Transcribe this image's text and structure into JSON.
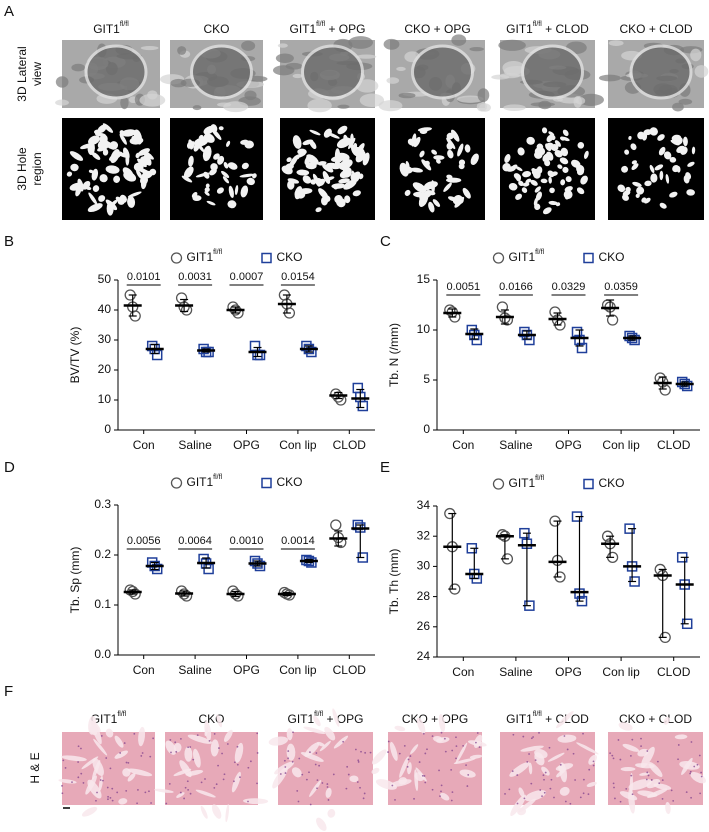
{
  "panel_a": {
    "label": "A",
    "columns": [
      {
        "text": "GIT1",
        "sup": "fl/fl"
      },
      {
        "text": "CKO"
      },
      {
        "text": "GIT1",
        "sup": "fl/fl",
        "after": " + OPG"
      },
      {
        "text": "CKO + OPG"
      },
      {
        "text": "GIT1",
        "sup": "fl/fl",
        "after": " + CLOD"
      },
      {
        "text": "CKO + CLOD"
      }
    ],
    "rows": [
      [
        "3D Lateral",
        "view"
      ],
      [
        "3D Hole",
        "region"
      ]
    ]
  },
  "chart_data": [
    {
      "type": "dotplot",
      "panel": "B",
      "y_label": "BV/TV (%)",
      "categories": [
        "Con",
        "Saline",
        "OPG",
        "Con lip",
        "CLOD"
      ],
      "series": [
        {
          "name": "GIT1",
          "name_sup": "fl/fl",
          "marker": "circle",
          "color": "#555555",
          "values": [
            [
              45,
              41,
              38
            ],
            [
              44,
              41,
              40
            ],
            [
              41,
              40,
              39
            ],
            [
              45,
              42,
              39
            ],
            [
              12,
              11,
              10
            ]
          ],
          "means": [
            41.5,
            41.5,
            40,
            42,
            11.5
          ],
          "error_bars": [
            [
              38,
              45
            ],
            [
              39.5,
              43.5
            ],
            [
              39,
              41
            ],
            [
              39,
              45
            ],
            [
              10.5,
              12.5
            ]
          ]
        },
        {
          "name": "CKO",
          "marker": "square",
          "color": "#1f3f9a",
          "values": [
            [
              28,
              27,
              25
            ],
            [
              27,
              26,
              26
            ],
            [
              28,
              25,
              25
            ],
            [
              28,
              27,
              26
            ],
            [
              14,
              11,
              8
            ]
          ],
          "means": [
            27,
            26.5,
            26,
            27,
            10.5
          ],
          "error_bars": [
            [
              25.5,
              28.5
            ],
            [
              26,
              27
            ],
            [
              24.5,
              27.5
            ],
            [
              26,
              28
            ],
            [
              7.5,
              13.5
            ]
          ]
        }
      ],
      "p_values": [
        "0.0101",
        "0.0031",
        "0.0007",
        "0.0154"
      ],
      "ylim": [
        0,
        50
      ],
      "yticks": [
        0,
        10,
        20,
        30,
        40,
        50
      ]
    },
    {
      "type": "dotplot",
      "panel": "C",
      "y_label": "Tb. N (/mm)",
      "categories": [
        "Con",
        "Saline",
        "OPG",
        "Con lip",
        "CLOD"
      ],
      "series": [
        {
          "name": "GIT1",
          "name_sup": "fl/fl",
          "marker": "circle",
          "color": "#555555",
          "values": [
            [
              12,
              11.8,
              11.3
            ],
            [
              12.3,
              11.2,
              11
            ],
            [
              11.8,
              11,
              10.5
            ],
            [
              12.5,
              12.3,
              11
            ],
            [
              5.2,
              4.8,
              4
            ]
          ],
          "means": [
            11.7,
            11.3,
            11.1,
            12.2,
            4.7
          ],
          "error_bars": [
            [
              11.3,
              12.1
            ],
            [
              10.6,
              12
            ],
            [
              10.5,
              11.7
            ],
            [
              11.4,
              13
            ],
            [
              4.1,
              5.3
            ]
          ]
        },
        {
          "name": "CKO",
          "marker": "square",
          "color": "#1f3f9a",
          "values": [
            [
              10,
              9.5,
              9
            ],
            [
              9.8,
              9.5,
              9
            ],
            [
              9.8,
              9,
              8.2
            ],
            [
              9.4,
              9.2,
              9
            ],
            [
              4.8,
              4.6,
              4.4
            ]
          ],
          "means": [
            9.6,
            9.5,
            9.2,
            9.2,
            4.6
          ],
          "error_bars": [
            [
              9.1,
              10.1
            ],
            [
              9.1,
              9.9
            ],
            [
              8.4,
              10
            ],
            [
              9,
              9.4
            ],
            [
              4.4,
              4.8
            ]
          ]
        }
      ],
      "p_values": [
        "0.0051",
        "0.0166",
        "0.0329",
        "0.0359"
      ],
      "ylim": [
        0,
        15
      ],
      "yticks": [
        0,
        5,
        10,
        15
      ]
    },
    {
      "type": "dotplot",
      "panel": "D",
      "y_label": "Tb. Sp (mm)",
      "categories": [
        "Con",
        "Saline",
        "OPG",
        "Con lip",
        "CLOD"
      ],
      "series": [
        {
          "name": "GIT1",
          "name_sup": "fl/fl",
          "marker": "circle",
          "color": "#555555",
          "values": [
            [
              0.13,
              0.127,
              0.122
            ],
            [
              0.128,
              0.122,
              0.118
            ],
            [
              0.128,
              0.122,
              0.118
            ],
            [
              0.125,
              0.122,
              0.12
            ],
            [
              0.26,
              0.235,
              0.225
            ]
          ],
          "means": [
            0.126,
            0.123,
            0.122,
            0.122,
            0.233
          ],
          "error_bars": [
            [
              0.122,
              0.13
            ],
            [
              0.118,
              0.128
            ],
            [
              0.117,
              0.127
            ],
            [
              0.119,
              0.125
            ],
            [
              0.218,
              0.248
            ]
          ]
        },
        {
          "name": "CKO",
          "marker": "square",
          "color": "#1f3f9a",
          "values": [
            [
              0.185,
              0.178,
              0.172
            ],
            [
              0.192,
              0.183,
              0.172
            ],
            [
              0.188,
              0.183,
              0.178
            ],
            [
              0.19,
              0.188,
              0.185
            ],
            [
              0.26,
              0.255,
              0.195
            ]
          ],
          "means": [
            0.178,
            0.184,
            0.183,
            0.188,
            0.253
          ],
          "error_bars": [
            [
              0.171,
              0.185
            ],
            [
              0.174,
              0.194
            ],
            [
              0.178,
              0.188
            ],
            [
              0.185,
              0.191
            ],
            [
              0.195,
              0.26
            ]
          ]
        }
      ],
      "p_values": [
        "0.0056",
        "0.0064",
        "0.0010",
        "0.0014"
      ],
      "ylim": [
        0,
        0.3
      ],
      "yticks": [
        {
          "value": 0,
          "label": "0.0"
        },
        0.1,
        0.2,
        0.3
      ]
    },
    {
      "type": "dotplot",
      "panel": "E",
      "y_label": "Tb. Th (mm)",
      "categories": [
        "Con",
        "Saline",
        "OPG",
        "Con lip",
        "CLOD"
      ],
      "series": [
        {
          "name": "GIT1",
          "name_sup": "fl/fl",
          "marker": "circle",
          "color": "#555555",
          "values": [
            [
              33.5,
              31.3,
              28.5
            ],
            [
              32.1,
              32,
              30.5
            ],
            [
              33,
              30.4,
              29.3
            ],
            [
              32,
              31.5,
              30.6
            ],
            [
              29.8,
              29.4,
              25.3
            ]
          ],
          "means": [
            31.3,
            32,
            30.3,
            31.5,
            29.4
          ],
          "error_bars": [
            [
              28.5,
              33.5
            ],
            [
              30.5,
              32.1
            ],
            [
              29.3,
              33
            ],
            [
              30.6,
              32
            ],
            [
              25.3,
              29.8
            ]
          ]
        },
        {
          "name": "CKO",
          "marker": "square",
          "color": "#1f3f9a",
          "values": [
            [
              31.2,
              29.5,
              29.2
            ],
            [
              32.2,
              31.5,
              27.4
            ],
            [
              33.3,
              28.2,
              27.7
            ],
            [
              32.5,
              30,
              29
            ],
            [
              30.6,
              28.8,
              26.2
            ]
          ],
          "means": [
            29.5,
            31.4,
            28.3,
            30,
            28.8
          ],
          "error_bars": [
            [
              29.2,
              31.2
            ],
            [
              27.4,
              32.2
            ],
            [
              27.7,
              33.3
            ],
            [
              29,
              32.5
            ],
            [
              26.2,
              30.6
            ]
          ]
        }
      ],
      "ylim": [
        24,
        34
      ],
      "yticks": [
        24,
        26,
        28,
        30,
        32,
        34
      ]
    }
  ],
  "panel_f": {
    "label": "F",
    "columns": [
      {
        "text": "GIT1",
        "sup": "fl/fl"
      },
      {
        "text": "CKO"
      },
      {
        "text": "GIT1",
        "sup": "fl/fl",
        "after": " + OPG"
      },
      {
        "text": "CKO + OPG"
      },
      {
        "text": "GIT1",
        "sup": "fl/fl",
        "after": " + CLOD"
      },
      {
        "text": "CKO + CLOD"
      }
    ],
    "row": "H & E"
  }
}
